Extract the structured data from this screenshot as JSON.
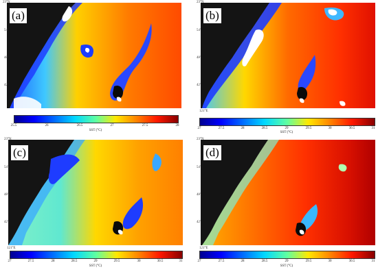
{
  "panels": [
    {
      "id": "a",
      "label": "(a)",
      "corner_lat": "23°N",
      "corner_lon": "",
      "lat_ticks": [
        "54'",
        "48'",
        "42'",
        "36'"
      ],
      "lon_ticks": [
        "",
        "",
        "",
        ""
      ],
      "colorbar": {
        "ticks": [
          "25.5",
          "26",
          "26.5",
          "27",
          "27.5",
          "28"
        ],
        "title": "SST (°C)"
      }
    },
    {
      "id": "b",
      "label": "(b)",
      "corner_lat": "23°N",
      "corner_lon": "121°E",
      "lat_ticks": [
        "54'",
        "48'",
        "42'",
        "36'"
      ],
      "lon_ticks": [
        "",
        "",
        "",
        ""
      ],
      "colorbar": {
        "ticks": [
          "27",
          "27.5",
          "28",
          "28.5",
          "29",
          "29.5",
          "30",
          "30.5",
          "31"
        ],
        "title": "SST (°C)"
      }
    },
    {
      "id": "c",
      "label": "(c)",
      "corner_lat": "23°N",
      "corner_lon": "121°E",
      "lat_ticks": [
        "54'",
        "48'",
        "42'",
        "36'"
      ],
      "lon_ticks": [
        "",
        "",
        "",
        ""
      ],
      "colorbar": {
        "ticks": [
          "27",
          "27.5",
          "28",
          "28.5",
          "29",
          "29.5",
          "30",
          "30.5",
          "31"
        ],
        "title": "SST (°C)"
      }
    },
    {
      "id": "d",
      "label": "(d)",
      "corner_lat": "23°N",
      "corner_lon": "121°E",
      "lat_ticks": [
        "54'",
        "48'",
        "42'",
        "36'"
      ],
      "lon_ticks": [
        "",
        "",
        "",
        ""
      ],
      "colorbar": {
        "ticks": [
          "27",
          "27.5",
          "28",
          "28.5",
          "29",
          "29.5",
          "30",
          "30.5",
          "31"
        ],
        "title": "SST (°C)"
      }
    }
  ],
  "colors": {
    "land": "#141414",
    "cloud": "#ffffff",
    "cold": "#1a3cff",
    "warm": "#ff5a00"
  }
}
